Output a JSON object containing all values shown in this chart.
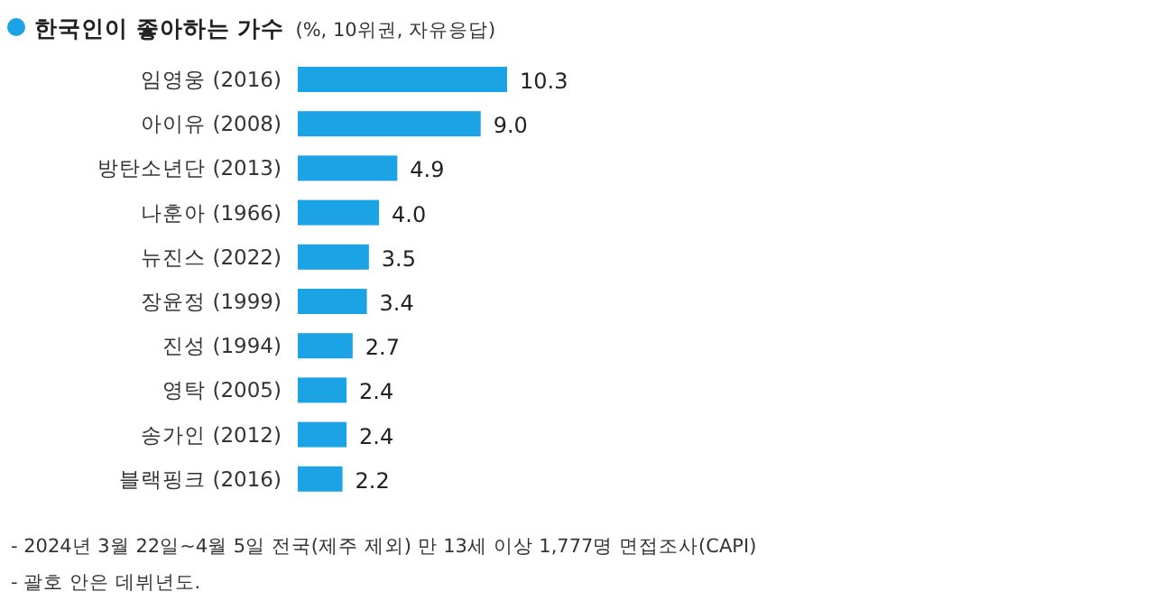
{
  "chart_data": {
    "type": "bar",
    "orientation": "horizontal",
    "title": "한국인이 좋아하는 가수",
    "subtitle": "(%, 10위권, 자유응답)",
    "categories": [
      "임영웅 (2016)",
      "아이유 (2008)",
      "방탄소년단 (2013)",
      "나훈아 (1966)",
      "뉴진스 (2022)",
      "장윤정 (1999)",
      "진성 (1994)",
      "영탁 (2005)",
      "송가인 (2012)",
      "블랙핑크 (2016)"
    ],
    "values": [
      10.3,
      9.0,
      4.9,
      4.0,
      3.5,
      3.4,
      2.7,
      2.4,
      2.4,
      2.2
    ],
    "value_labels": [
      "10.3",
      "9.0",
      "4.9",
      "4.0",
      "3.5",
      "3.4",
      "2.7",
      "2.4",
      "2.4",
      "2.2"
    ],
    "color": "#1ba3e6",
    "annotations": [
      "- 2024년 3월 22일~4월 5일 전국(제주 제외) 만 13세 이상 1,777명 면접조사(CAPI)",
      "- 괄호 안은 데뷔년도."
    ]
  }
}
